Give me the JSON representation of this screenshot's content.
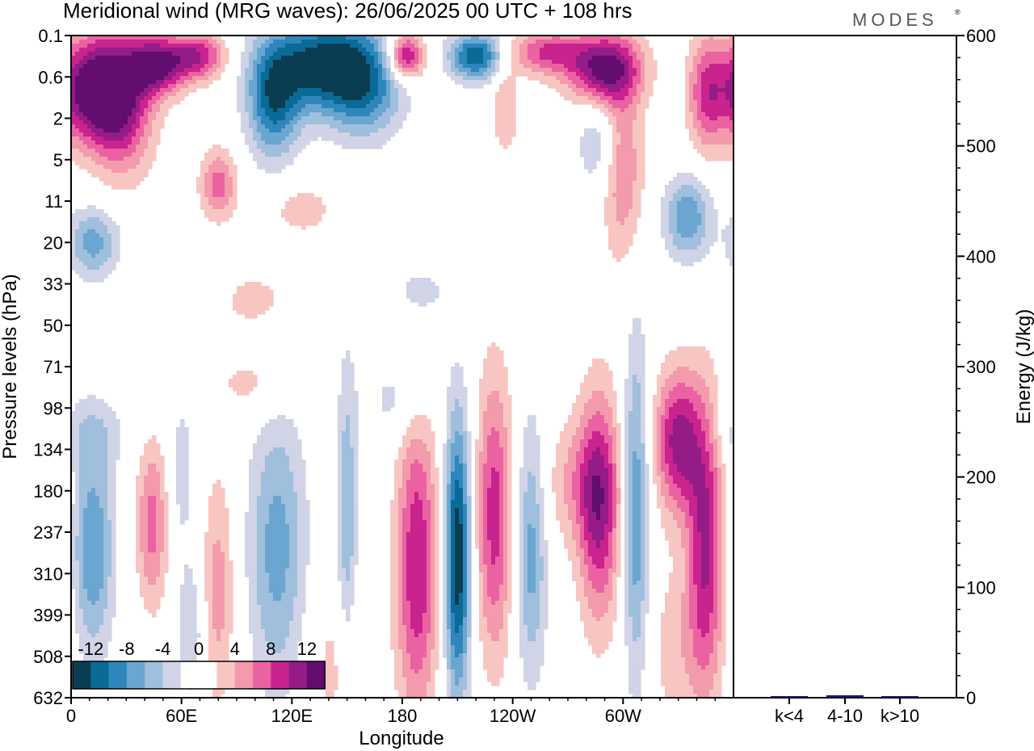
{
  "brand": "MODES",
  "colors": {
    "neg": [
      "#0b3d52",
      "#0a6b96",
      "#2e86bd",
      "#6aa6cf",
      "#9fbfdc",
      "#d0d4e6"
    ],
    "zero": "#ffffff",
    "pos": [
      "#f8c6c2",
      "#f39aac",
      "#eb62a2",
      "#c9238e",
      "#951b87",
      "#620d6f"
    ],
    "energy_bar": "#17186a"
  },
  "chart_data": [
    {
      "type": "heatmap",
      "title": "Meridional wind (MRG waves):  26/06/2025  00 UTC  + 108 hrs",
      "xlabel": "Longitude",
      "ylabel": "Pressure levels (hPa)",
      "x_ticks": [
        "0",
        "60E",
        "120E",
        "180",
        "120W",
        "60W"
      ],
      "y_ticks": [
        "0.1",
        "0.6",
        "2",
        "5",
        "11",
        "20",
        "33",
        "50",
        "71",
        "98",
        "134",
        "180",
        "237",
        "310",
        "399",
        "508",
        "632"
      ],
      "colorbar": {
        "labels": [
          "-12",
          "-8",
          "-4",
          "0",
          "4",
          "8",
          "12"
        ],
        "levels": [
          -14,
          -12,
          -10,
          -8,
          -6,
          -4,
          -2,
          2,
          4,
          6,
          8,
          10,
          12,
          14
        ]
      },
      "features": [
        {
          "lon": 10,
          "lev": 1.3,
          "v": 13,
          "dlon": 14,
          "dlev": 0.9
        },
        {
          "lon": 28,
          "lev": 1.6,
          "v": 10,
          "dlon": 12,
          "dlev": 1.2
        },
        {
          "lon": 48,
          "lev": 0.7,
          "v": 12,
          "dlon": 11,
          "dlev": 0.5
        },
        {
          "lon": 70,
          "lev": 0.5,
          "v": 9,
          "dlon": 10,
          "dlev": 0.4
        },
        {
          "lon": 140,
          "lev": 0.7,
          "v": -14,
          "dlon": 22,
          "dlev": 0.8
        },
        {
          "lon": 110,
          "lev": 1.6,
          "v": -10,
          "dlon": 10,
          "dlev": 1.0
        },
        {
          "lon": 160,
          "lev": 1.5,
          "v": -6,
          "dlon": 14,
          "dlev": 0.8
        },
        {
          "lon": 182,
          "lev": 0.5,
          "v": 12,
          "dlon": 7,
          "dlev": 0.4
        },
        {
          "lon": 220,
          "lev": 0.5,
          "v": -12,
          "dlon": 10,
          "dlev": 0.4
        },
        {
          "lon": 258,
          "lev": 0.4,
          "v": 8,
          "dlon": 14,
          "dlev": 0.4
        },
        {
          "lon": 290,
          "lev": 0.8,
          "v": 13,
          "dlon": 14,
          "dlev": 0.6
        },
        {
          "lon": 345,
          "lev": 1.4,
          "v": 7,
          "dlon": 7,
          "dlev": 1.0
        },
        {
          "lon": 236,
          "lev": 1.8,
          "v": 4,
          "dlon": 5,
          "dlev": 0.8
        },
        {
          "lon": 286,
          "lev": 2.6,
          "v": -4,
          "dlon": 8,
          "dlev": 0.8
        },
        {
          "lon": 300,
          "lev": 3.2,
          "v": 6,
          "dlon": 8,
          "dlev": 1.6
        },
        {
          "lon": 335,
          "lev": 4.4,
          "v": -8,
          "dlon": 9,
          "dlev": 0.7
        },
        {
          "lon": 12,
          "lev": 5.0,
          "v": -7,
          "dlon": 10,
          "dlev": 0.6
        },
        {
          "lon": 80,
          "lev": 3.6,
          "v": 7,
          "dlon": 7,
          "dlev": 0.6
        },
        {
          "lon": 125,
          "lev": 4.2,
          "v": 3,
          "dlon": 14,
          "dlev": 0.5
        },
        {
          "lon": 190,
          "lev": 6.2,
          "v": -3,
          "dlon": 11,
          "dlev": 0.5
        },
        {
          "lon": 100,
          "lev": 6.4,
          "v": 3,
          "dlon": 14,
          "dlev": 0.5
        },
        {
          "lon": 100,
          "lev": 8.4,
          "v": 3,
          "dlon": 15,
          "dlev": 0.6
        },
        {
          "lon": 178,
          "lev": 8.8,
          "v": -3,
          "dlon": 12,
          "dlev": 0.7
        },
        {
          "lon": 10,
          "lev": 9.6,
          "v": -3,
          "dlon": 15,
          "dlev": 0.6
        },
        {
          "lon": 330,
          "lev": 9.8,
          "v": 11,
          "dlon": 9,
          "dlev": 1.2
        },
        {
          "lon": 275,
          "lev": 10.8,
          "v": 4,
          "dlon": 14,
          "dlev": 1.1
        },
        {
          "lon": 12,
          "lev": 12.4,
          "v": -8,
          "dlon": 8,
          "dlev": 1.8
        },
        {
          "lon": 44,
          "lev": 11.8,
          "v": 7,
          "dlon": 6,
          "dlev": 1.4
        },
        {
          "lon": 60,
          "lev": 10.5,
          "v": -3,
          "dlon": 5,
          "dlev": 1.4
        },
        {
          "lon": 112,
          "lev": 12.4,
          "v": -7,
          "dlon": 11,
          "dlev": 2.4
        },
        {
          "lon": 150,
          "lev": 11.8,
          "v": -6,
          "dlon": 4,
          "dlev": 2.8
        },
        {
          "lon": 188,
          "lev": 12.8,
          "v": 10,
          "dlon": 8,
          "dlev": 2.6
        },
        {
          "lon": 210,
          "lev": 12.6,
          "v": -14,
          "dlon": 5,
          "dlev": 2.4
        },
        {
          "lon": 230,
          "lev": 11.6,
          "v": 9,
          "dlon": 7,
          "dlev": 2.4
        },
        {
          "lon": 250,
          "lev": 12.4,
          "v": -7,
          "dlon": 6,
          "dlev": 2.2
        },
        {
          "lon": 287,
          "lev": 11.4,
          "v": 10,
          "dlon": 8,
          "dlev": 2.0
        },
        {
          "lon": 307,
          "lev": 11.5,
          "v": -8,
          "dlon": 5,
          "dlev": 3.0
        },
        {
          "lon": 345,
          "lev": 12.3,
          "v": 10,
          "dlon": 7,
          "dlev": 2.4
        },
        {
          "lon": 80,
          "lev": 13.4,
          "v": 5,
          "dlon": 6,
          "dlev": 2.0
        },
        {
          "lon": 65,
          "lev": 14.4,
          "v": -4,
          "dlon": 5,
          "dlev": 1.2
        },
        {
          "lon": 147,
          "lev": 15.2,
          "v": 3,
          "dlon": 12,
          "dlev": 1.6
        },
        {
          "lon": 330,
          "lev": 14.8,
          "v": 3,
          "dlon": 12,
          "dlev": 1.6
        }
      ]
    },
    {
      "type": "bar",
      "categories": [
        "k<4",
        "4-10",
        "k>10"
      ],
      "values": [
        0.8,
        2.2,
        0.5
      ],
      "ylabel": "Energy (J/kg)",
      "ylim": [
        0,
        600
      ],
      "y_ticks": [
        "0",
        "100",
        "200",
        "300",
        "400",
        "500",
        "600"
      ]
    }
  ]
}
